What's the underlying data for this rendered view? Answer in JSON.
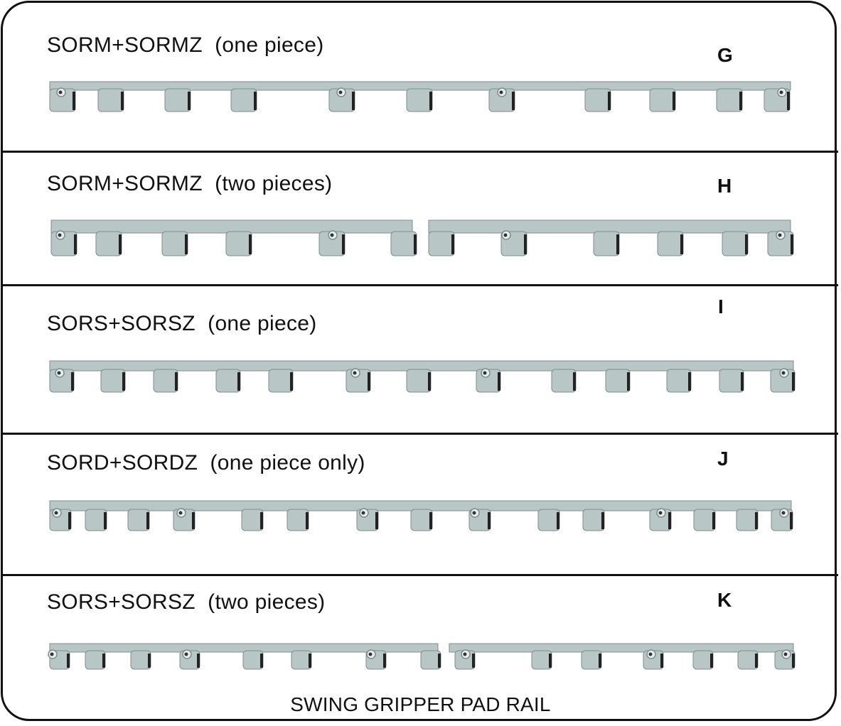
{
  "sections": [
    {
      "label": "SORM+SORMZ  (one piece)",
      "letter": "G"
    },
    {
      "label": "SORM+SORMZ  (two pieces)",
      "letter": "H"
    },
    {
      "label": "SORS+SORSZ  (one piece)",
      "letter": "I"
    },
    {
      "label": "SORD+SORDZ  (one piece only)",
      "letter": "J"
    },
    {
      "label": "SORS+SORSZ  (two pieces)",
      "letter": "K"
    }
  ],
  "caption": "SWING GRIPPER PAD RAIL",
  "colors": {
    "rail": "#b9c6c6",
    "rail_shadow": "#7f8d8d",
    "line": "#111111"
  }
}
